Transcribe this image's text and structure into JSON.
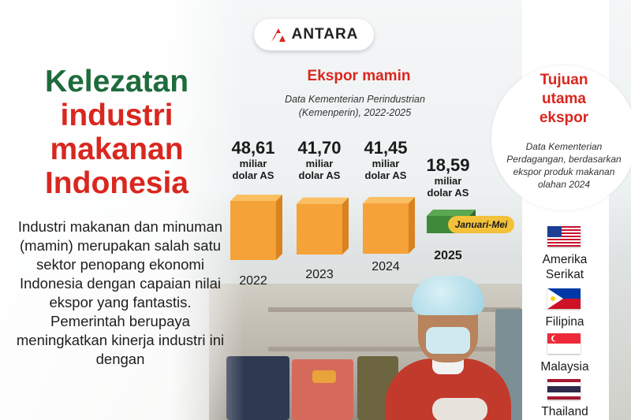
{
  "logo": {
    "text": "ANTARA"
  },
  "headline": {
    "line1": "Kelezatan",
    "line2": "industri",
    "line3": "makanan",
    "line4": "Indonesia"
  },
  "body_text": "Industri makanan dan minuman (mamin) merupakan salah satu sektor penopang ekonomi Indonesia dengan capaian nilai ekspor yang fantastis. Pemerintah berupaya meningkatkan kinerja industri ini dengan",
  "chart_data": {
    "type": "bar",
    "title": "Ekspor mamin",
    "source": "Data Kementerian Perindustrian (Kemenperin), 2022-2025",
    "categories": [
      "2022",
      "2023",
      "2024",
      "2025"
    ],
    "values": [
      48.61,
      41.7,
      41.45,
      18.59
    ],
    "value_labels": [
      "48,61",
      "41,70",
      "41,45",
      "18,59"
    ],
    "unit_line1": "miliar",
    "unit_line2": "dolar AS",
    "note": "Januari-Mei",
    "colors": {
      "bar": "#f5a238",
      "bar_side": "#d98320",
      "bar_top": "#fbbf63",
      "partial": "#3f8a3a",
      "partial_side": "#2f6d2b",
      "partial_top": "#5aa852"
    }
  },
  "destinations": {
    "title_line1": "Tujuan",
    "title_line2": "utama",
    "title_line3": "ekspor",
    "source": "Data Kementerian Perdagangan, berdasarkan ekspor produk makanan olahan 2024",
    "countries": [
      {
        "name_line1": "Amerika",
        "name_line2": "Serikat",
        "flag": "usa-flag"
      },
      {
        "name_line1": "Filipina",
        "flag": "philippines-flag"
      },
      {
        "name_line1": "Malaysia",
        "flag": "singapore-flag"
      },
      {
        "name_line1": "Thailand",
        "flag": "thailand-flag"
      }
    ]
  },
  "colors": {
    "green": "#1e6b3c",
    "red": "#d9271f",
    "accent_yellow": "#f3c13a"
  }
}
